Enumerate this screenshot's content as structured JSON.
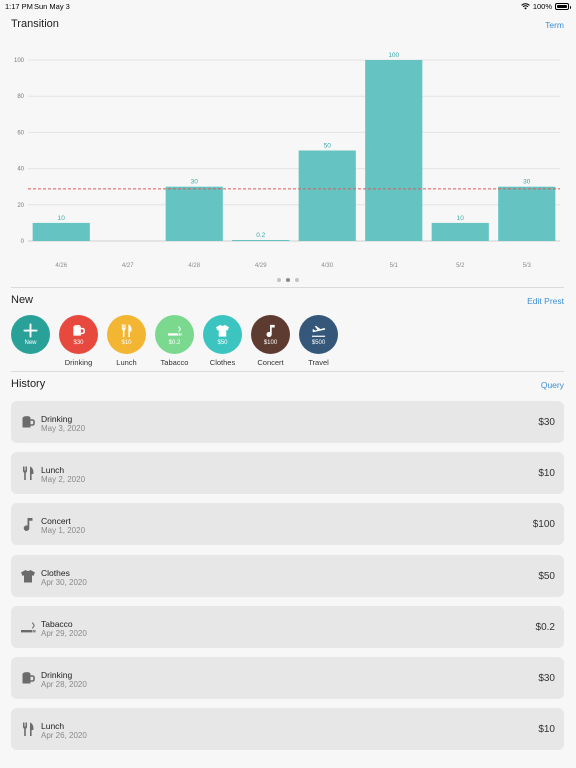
{
  "status": {
    "time": "1:17 PM",
    "date": "Sun May 3",
    "battery": "100%",
    "battery_level": 1.0
  },
  "transition": {
    "title": "Transition",
    "link": "Term"
  },
  "chart_data": {
    "type": "bar",
    "categories": [
      "4/26",
      "4/27",
      "4/28",
      "4/29",
      "4/30",
      "5/1",
      "5/2",
      "5/3"
    ],
    "values": [
      10,
      0,
      30,
      0.2,
      50,
      100,
      10,
      30
    ],
    "value_labels": [
      "10",
      "",
      "30",
      "0.2",
      "50",
      "100",
      "10",
      "30"
    ],
    "y_ticks": [
      0,
      20,
      40,
      60,
      80,
      100
    ],
    "ylim": [
      0,
      100
    ],
    "average_line": 28.8,
    "bar_color": "#65c4c2",
    "label_color": "#3aa8a5",
    "average_color": "#e05a5a",
    "grid": true
  },
  "pager": {
    "count": 3,
    "active": 1
  },
  "new": {
    "title": "New",
    "link": "Edit Prest",
    "presets": [
      {
        "name": "new-preset",
        "label": "",
        "amount": "New",
        "color": "#2aa198",
        "icon": "plus-icon"
      },
      {
        "name": "drinking-preset",
        "label": "Drinking",
        "amount": "$30",
        "color": "#e8493f",
        "icon": "mug-icon"
      },
      {
        "name": "lunch-preset",
        "label": "Lunch",
        "amount": "$10",
        "color": "#f2b632",
        "icon": "fork-knife-icon"
      },
      {
        "name": "tabacco-preset",
        "label": "Tabacco",
        "amount": "$0.2",
        "color": "#7bd88f",
        "icon": "cigarette-icon"
      },
      {
        "name": "clothes-preset",
        "label": "Clothes",
        "amount": "$50",
        "color": "#3cc5c0",
        "icon": "tshirt-icon"
      },
      {
        "name": "concert-preset",
        "label": "Concert",
        "amount": "$100",
        "color": "#5d3b31",
        "icon": "music-note-icon"
      },
      {
        "name": "travel-preset",
        "label": "Travel",
        "amount": "$500",
        "color": "#35577a",
        "icon": "airplane-icon"
      }
    ]
  },
  "history": {
    "title": "History",
    "link": "Query",
    "items": [
      {
        "title": "Drinking",
        "date": "May 3, 2020",
        "amount": "$30",
        "icon": "mug-icon"
      },
      {
        "title": "Lunch",
        "date": "May 2, 2020",
        "amount": "$10",
        "icon": "fork-knife-icon"
      },
      {
        "title": "Concert",
        "date": "May 1, 2020",
        "amount": "$100",
        "icon": "music-note-icon"
      },
      {
        "title": "Clothes",
        "date": "Apr 30, 2020",
        "amount": "$50",
        "icon": "tshirt-icon"
      },
      {
        "title": "Tabacco",
        "date": "Apr 29, 2020",
        "amount": "$0.2",
        "icon": "cigarette-icon"
      },
      {
        "title": "Drinking",
        "date": "Apr 28, 2020",
        "amount": "$30",
        "icon": "mug-icon"
      },
      {
        "title": "Lunch",
        "date": "Apr 26, 2020",
        "amount": "$10",
        "icon": "fork-knife-icon"
      }
    ]
  }
}
